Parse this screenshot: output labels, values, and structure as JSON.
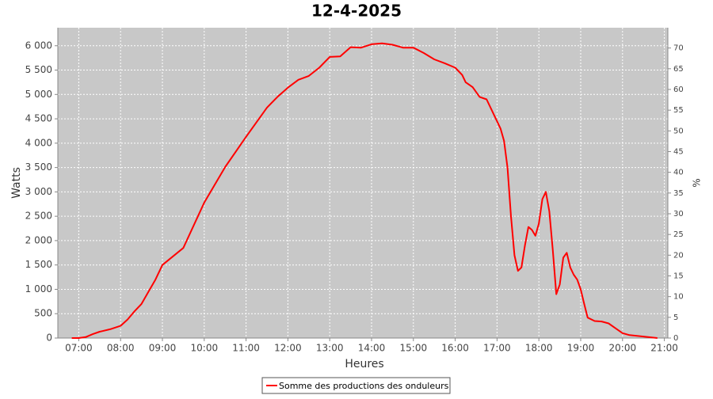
{
  "chart_data": {
    "type": "line",
    "title": "12-4-2025",
    "x_label": "Heures",
    "y_label": "Watts",
    "y2_label": "%",
    "x": [
      410,
      420,
      430,
      440,
      450,
      465,
      480,
      490,
      500,
      510,
      520,
      530,
      540,
      570,
      600,
      630,
      660,
      690,
      705,
      720,
      735,
      750,
      765,
      780,
      795,
      810,
      825,
      840,
      855,
      870,
      885,
      900,
      915,
      930,
      945,
      960,
      970,
      975,
      985,
      995,
      1005,
      1015,
      1020,
      1025,
      1030,
      1035,
      1040,
      1045,
      1050,
      1055,
      1060,
      1065,
      1070,
      1075,
      1080,
      1085,
      1090,
      1095,
      1100,
      1105,
      1110,
      1115,
      1120,
      1125,
      1130,
      1135,
      1140,
      1145,
      1150,
      1160,
      1170,
      1180,
      1190,
      1200,
      1210,
      1250
    ],
    "series": [
      {
        "name": "Somme des productions des onduleurs",
        "color": "#ff0000",
        "values": [
          0,
          0,
          20,
          80,
          130,
          180,
          250,
          380,
          550,
          700,
          950,
          1200,
          1500,
          1850,
          2780,
          3510,
          4130,
          4730,
          4950,
          5140,
          5300,
          5380,
          5550,
          5770,
          5780,
          5970,
          5960,
          6030,
          6050,
          6020,
          5960,
          5960,
          5850,
          5720,
          5640,
          5550,
          5400,
          5250,
          5150,
          4950,
          4900,
          4600,
          4450,
          4300,
          4050,
          3500,
          2500,
          1700,
          1380,
          1450,
          1900,
          2280,
          2220,
          2100,
          2350,
          2850,
          3000,
          2600,
          1800,
          900,
          1100,
          1650,
          1750,
          1450,
          1300,
          1200,
          1000,
          700,
          420,
          350,
          340,
          300,
          200,
          100,
          60,
          0
        ]
      }
    ],
    "xlim": [
      390,
      1265
    ],
    "xticks": [
      {
        "value": 420,
        "label": "07:00"
      },
      {
        "value": 480,
        "label": "08:00"
      },
      {
        "value": 540,
        "label": "09:00"
      },
      {
        "value": 600,
        "label": "10:00"
      },
      {
        "value": 660,
        "label": "11:00"
      },
      {
        "value": 720,
        "label": "12:00"
      },
      {
        "value": 780,
        "label": "13:00"
      },
      {
        "value": 840,
        "label": "14:00"
      },
      {
        "value": 900,
        "label": "15:00"
      },
      {
        "value": 960,
        "label": "16:00"
      },
      {
        "value": 1020,
        "label": "17:00"
      },
      {
        "value": 1080,
        "label": "18:00"
      },
      {
        "value": 1140,
        "label": "19:00"
      },
      {
        "value": 1200,
        "label": "20:00"
      },
      {
        "value": 1260,
        "label": "21:00"
      }
    ],
    "ylim": [
      0,
      6370
    ],
    "yticks": [
      0,
      500,
      {
        "value": 1000,
        "label": "1 000"
      },
      {
        "value": 1500,
        "label": "1 500"
      },
      {
        "value": 2000,
        "label": "2 000"
      },
      {
        "value": 2500,
        "label": "2 500"
      },
      {
        "value": 3000,
        "label": "3 000"
      },
      {
        "value": 3500,
        "label": "3 500"
      },
      {
        "value": 4000,
        "label": "4 000"
      },
      {
        "value": 4500,
        "label": "4 500"
      },
      {
        "value": 5000,
        "label": "5 000"
      },
      {
        "value": 5500,
        "label": "5 500"
      },
      {
        "value": 6000,
        "label": "6 000"
      }
    ],
    "y2lim": [
      0,
      74.9
    ],
    "y2ticks": [
      0,
      5,
      10,
      15,
      20,
      25,
      30,
      35,
      40,
      45,
      50,
      55,
      60,
      65,
      70
    ],
    "grid": true,
    "background": "#c8c8c8",
    "legend": "bottom"
  }
}
